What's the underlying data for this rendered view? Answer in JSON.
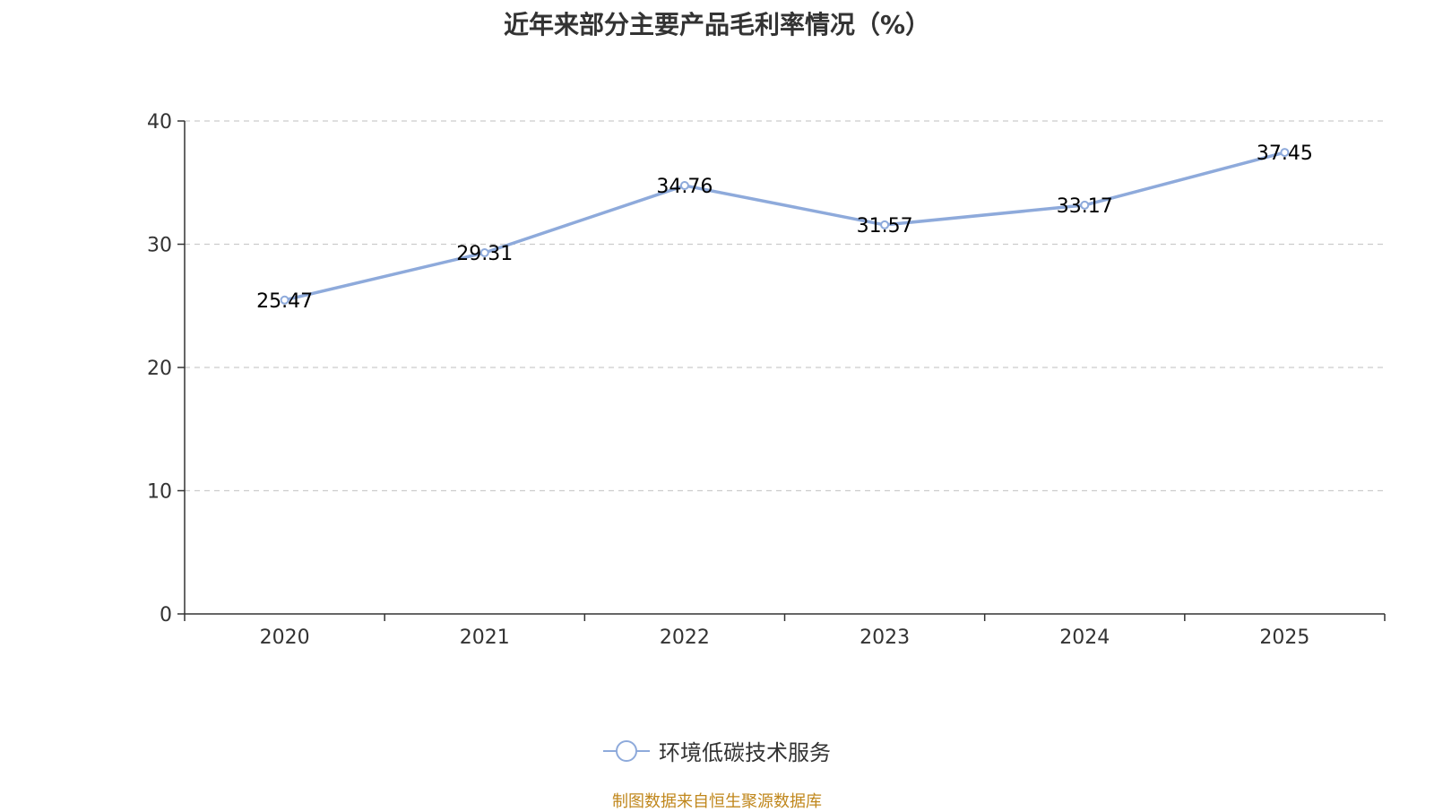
{
  "colors": {
    "series": "#8eaadb",
    "grid": "#cccccc",
    "axis": "#333333",
    "source": "#c0871c"
  },
  "chart_data": {
    "type": "line",
    "title": "近年来部分主要产品毛利率情况（%）",
    "xlabel": "",
    "ylabel": "",
    "categories": [
      "2020",
      "2021",
      "2022",
      "2023",
      "2024",
      "2025"
    ],
    "series": [
      {
        "name": "环境低碳技术服务",
        "values": [
          25.47,
          29.31,
          34.76,
          31.57,
          33.17,
          37.45
        ],
        "labels": [
          "25.47",
          "29.31",
          "34.76",
          "31.57",
          "33.17",
          "37.45"
        ]
      }
    ],
    "ylim": [
      0,
      40
    ],
    "yticks": [
      "0",
      "10",
      "20",
      "30",
      "40"
    ],
    "ytick_values": [
      0,
      10,
      20,
      30,
      40
    ],
    "grid": true,
    "legend_position": "bottom-center"
  },
  "footer": {
    "source": "制图数据来自恒生聚源数据库"
  }
}
